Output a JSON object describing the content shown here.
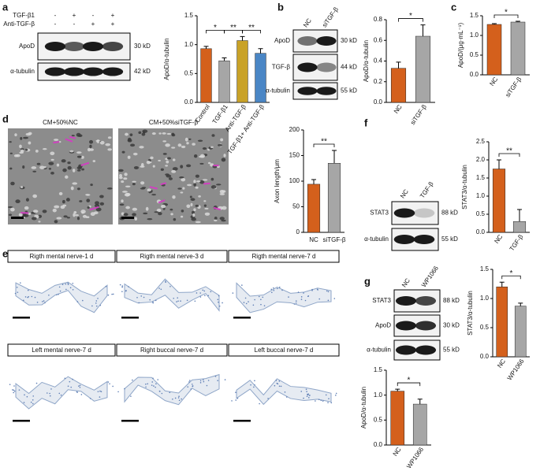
{
  "panel_labels": [
    "a",
    "b",
    "c",
    "d",
    "e",
    "f",
    "g"
  ],
  "chart_data": [
    {
      "type": "bar",
      "y_label": "ApoD/α-tubulin",
      "categories": [
        "Control",
        "TGF-β1",
        "Anti-TGF-β",
        "TGF-β1+ Anti-TGF-β"
      ],
      "values": [
        0.93,
        0.72,
        1.07,
        0.85
      ],
      "errors": [
        0.04,
        0.05,
        0.07,
        0.08
      ],
      "colors": [
        "#d4601c",
        "#a6a6a6",
        "#c9a227",
        "#4a86c5"
      ],
      "ylim": [
        0,
        1.5
      ],
      "yticks": [
        {
          "value": 0,
          "label": "0.0"
        },
        0.5,
        {
          "value": 1,
          "label": "1.0"
        },
        1.5
      ],
      "significance": [
        "*",
        "**",
        "**"
      ]
    },
    {
      "type": "bar",
      "y_label": "ApoD/α-tubulin",
      "categories": [
        "NC",
        "siTGF-β"
      ],
      "values": [
        0.33,
        0.64
      ],
      "errors": [
        0.06,
        0.11
      ],
      "colors": [
        "#d4601c",
        "#a6a6a6"
      ],
      "ylim": [
        0,
        0.8
      ],
      "yticks": [
        {
          "value": 0,
          "label": "0.0"
        },
        0.2,
        0.4,
        0.6,
        0.8
      ],
      "significance": [
        "*"
      ]
    },
    {
      "type": "bar",
      "y_label": "ApoD/(μg·mL⁻¹)",
      "categories": [
        "NC",
        "siTGF-β"
      ],
      "values": [
        1.28,
        1.34
      ],
      "errors": [
        0.02,
        0.02
      ],
      "colors": [
        "#d4601c",
        "#a6a6a6"
      ],
      "ylim": [
        0,
        1.5
      ],
      "yticks": [
        {
          "value": 0,
          "label": "0.0"
        },
        0.5,
        {
          "value": 1,
          "label": "1.0"
        },
        1.5
      ],
      "significance": [
        "*"
      ]
    },
    {
      "type": "bar",
      "y_label": "Axon length/μm",
      "categories": [
        "NC",
        "siTGF-β"
      ],
      "values": [
        94,
        135
      ],
      "errors": [
        9,
        25
      ],
      "colors": [
        "#d4601c",
        "#a6a6a6"
      ],
      "ylim": [
        0,
        200
      ],
      "yticks": [
        0,
        50,
        100,
        150,
        200
      ],
      "significance": [
        "**"
      ]
    },
    {
      "type": "bar",
      "y_label": "STAT3/α-tubulin",
      "categories": [
        "NC",
        "TGF-β"
      ],
      "values": [
        1.75,
        0.3
      ],
      "errors": [
        0.25,
        0.33
      ],
      "colors": [
        "#d4601c",
        "#a6a6a6"
      ],
      "ylim": [
        0,
        2.5
      ],
      "yticks": [
        {
          "value": 0,
          "label": "0.0"
        },
        0.5,
        {
          "value": 1,
          "label": "1.0"
        },
        1.5,
        {
          "value": 2,
          "label": "2.0"
        },
        2.5
      ],
      "significance": [
        "**"
      ]
    },
    {
      "type": "bar",
      "y_label": "STAT3/α-tubulin",
      "categories": [
        "NC",
        "WP1066"
      ],
      "values": [
        1.2,
        0.87
      ],
      "errors": [
        0.08,
        0.05
      ],
      "colors": [
        "#d4601c",
        "#a6a6a6"
      ],
      "ylim": [
        0,
        1.5
      ],
      "yticks": [
        {
          "value": 0,
          "label": "0.0"
        },
        0.5,
        {
          "value": 1,
          "label": "1.0"
        },
        1.5
      ],
      "significance": [
        "*"
      ]
    },
    {
      "type": "bar",
      "y_label": "ApoD/α-tubulin",
      "categories": [
        "NC",
        "WP1066"
      ],
      "values": [
        1.08,
        0.82
      ],
      "errors": [
        0.04,
        0.1
      ],
      "colors": [
        "#d4601c",
        "#a6a6a6"
      ],
      "ylim": [
        0,
        1.5
      ],
      "yticks": [
        {
          "value": 0,
          "label": "0.0"
        },
        0.5,
        {
          "value": 1,
          "label": "1.0"
        },
        1.5
      ],
      "significance": [
        "*"
      ]
    }
  ],
  "blots": [
    {
      "conditions": [
        {
          "name": "TGF-β1",
          "signs": [
            "-",
            "+",
            "-",
            "+"
          ]
        },
        {
          "name": "Anti-TGF-β",
          "signs": [
            "-",
            "-",
            "+",
            "+"
          ]
        }
      ],
      "rows": [
        {
          "protein": "ApoD",
          "size": "30 kD"
        },
        {
          "protein": "α-tubulin",
          "size": "42 kD"
        }
      ]
    },
    {
      "lanes": [
        "NC",
        "siTGF-β"
      ],
      "rows": [
        {
          "protein": "ApoD",
          "size": "30 kD"
        },
        {
          "protein": "TGF-β",
          "size": "44 kD"
        },
        {
          "protein": "α-tubulin",
          "size": "55 kD"
        }
      ]
    },
    {
      "lanes": [
        "NC",
        "TGF-β"
      ],
      "rows": [
        {
          "protein": "STAT3",
          "size": "88 kD"
        },
        {
          "protein": "α-tubulin",
          "size": "55 kD"
        }
      ]
    },
    {
      "lanes": [
        "NC",
        "WP1066"
      ],
      "rows": [
        {
          "protein": "STAT3",
          "size": "88 kD"
        },
        {
          "protein": "ApoD",
          "size": "30 kD"
        },
        {
          "protein": "α-tubulin",
          "size": "55 kD"
        }
      ]
    }
  ],
  "micrograph_titles": [
    "CM+50%NC",
    "CM+50%siTGF-β"
  ],
  "section_captions": [
    "Rigth mental nerve-1 d",
    "Rigth mental nerve-3 d",
    "Rigth mental nerve-7 d",
    "Left mental nerve-7 d",
    "Right buccal nerve-7 d",
    "Left buccal nerve-7 d"
  ]
}
